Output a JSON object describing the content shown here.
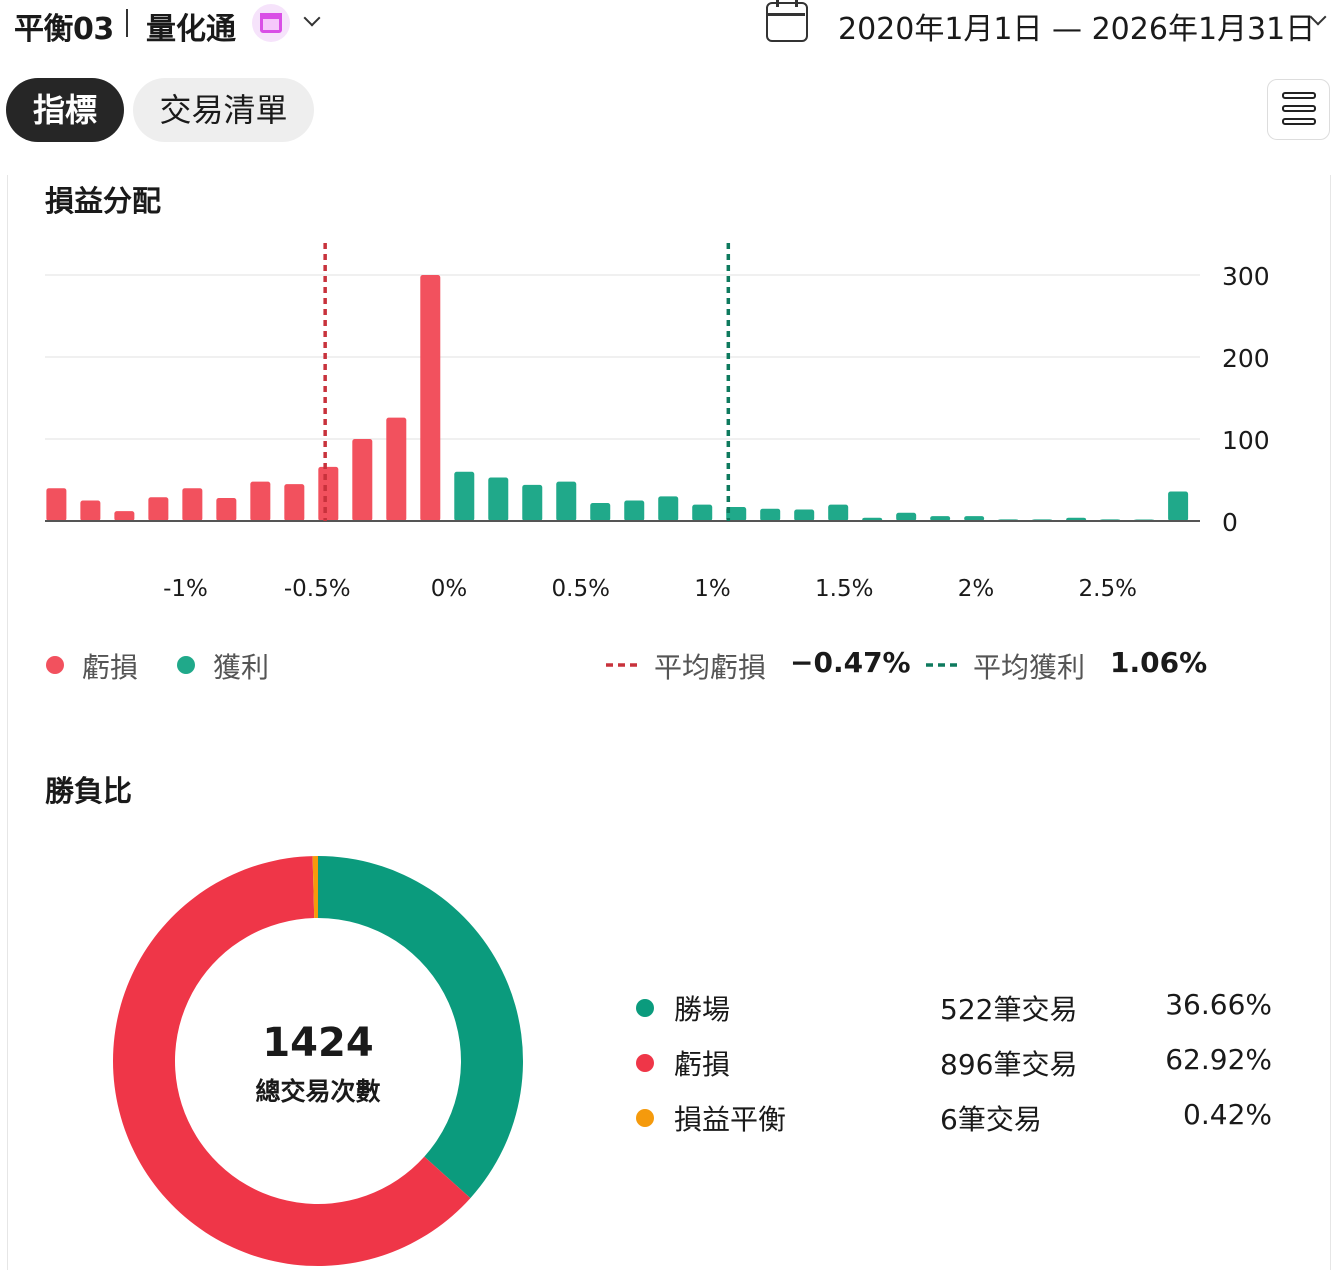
{
  "header": {
    "strategy_name": "平衡03",
    "provider": "量化通",
    "date_range": "2020年1月1日 — 2026年1月31日"
  },
  "tabs": [
    {
      "label": "指標",
      "active": true
    },
    {
      "label": "交易清單",
      "active": false
    }
  ],
  "pnl_distribution": {
    "title": "損益分配",
    "legend": {
      "loss_label": "虧損",
      "profit_label": "獲利",
      "avg_loss_label": "平均虧損",
      "avg_loss_value": "−0.47%",
      "avg_profit_label": "平均獲利",
      "avg_profit_value": "1.06%"
    }
  },
  "win_loss": {
    "title": "勝負比",
    "total": "1424",
    "total_caption": "總交易次數",
    "rows": [
      {
        "label": "勝場",
        "count": "522筆交易",
        "pct": "36.66%"
      },
      {
        "label": "虧損",
        "count": "896筆交易",
        "pct": "62.92%"
      },
      {
        "label": "損益平衡",
        "count": "6筆交易",
        "pct": "0.42%"
      }
    ]
  },
  "colors": {
    "loss": "#f2515e",
    "profit": "#20a98a",
    "loss_line": "#c8323c",
    "profit_line": "#0e7a5e",
    "donut_win": "#0b9b7d",
    "donut_loss": "#ef3648",
    "donut_even": "#f59a0c"
  },
  "icons": [
    "calendar-icon",
    "chevron-down-icon",
    "menu-icon"
  ],
  "chart_data": [
    {
      "type": "bar",
      "title": "損益分配",
      "x_tick_labels": [
        "-1%",
        "-0.5%",
        "0%",
        "0.5%",
        "1%",
        "1.5%",
        "2%",
        "2.5%"
      ],
      "x_ticks": [
        -1,
        -0.5,
        0,
        0.5,
        1,
        1.5,
        2,
        2.5
      ],
      "y_ticks": [
        0,
        100,
        200,
        300
      ],
      "ylim": [
        0,
        300
      ],
      "bin_width": 0.129,
      "first_bin_center": -1.49,
      "series": [
        {
          "name": "虧損",
          "values": [
            40,
            25,
            12,
            29,
            40,
            28,
            48,
            45,
            66,
            100,
            126,
            300
          ]
        },
        {
          "name": "獲利",
          "values": [
            60,
            53,
            44,
            48,
            22,
            25,
            30,
            20,
            17,
            15,
            14,
            20,
            4,
            10,
            6,
            6,
            2,
            2,
            4,
            2,
            1,
            36
          ]
        }
      ],
      "reference_lines": [
        {
          "name": "平均虧損",
          "x": -0.47
        },
        {
          "name": "平均獲利",
          "x": 1.06
        }
      ],
      "grid": true
    },
    {
      "type": "pie",
      "title": "勝負比",
      "categories": [
        "勝場",
        "虧損",
        "損益平衡"
      ],
      "values": [
        522,
        896,
        6
      ],
      "total": 1424
    }
  ]
}
